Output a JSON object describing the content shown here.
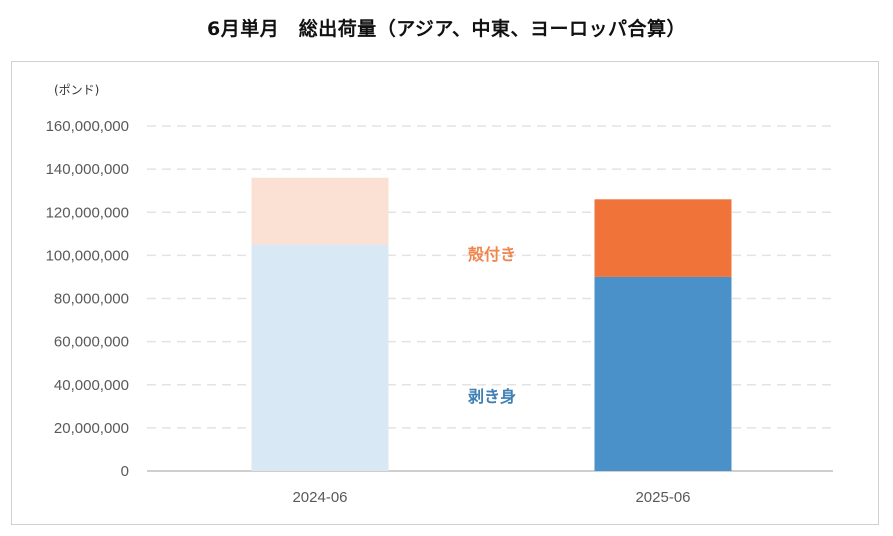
{
  "title": "6月単月　総出荷量（アジア、中東、ヨーロッパ合算）",
  "chart_data": {
    "type": "bar",
    "stacked": true,
    "title": "6月単月　総出荷量（アジア、中東、ヨーロッパ合算）",
    "y_unit": "(ポンド)",
    "categories": [
      "2024-06",
      "2025-06"
    ],
    "series": [
      {
        "name": "剥き身",
        "values": [
          105000000,
          90000000
        ],
        "colors": [
          "#d9e8f5",
          "#4a90c9"
        ],
        "label_color": "#3f7fb3"
      },
      {
        "name": "殻付き",
        "values": [
          31000000,
          36000000
        ],
        "colors": [
          "#fbe0d4",
          "#f0733a"
        ],
        "label_color": "#f0864f"
      }
    ],
    "ylim": [
      0,
      160000000
    ],
    "yticks": [
      0,
      20000000,
      40000000,
      60000000,
      80000000,
      100000000,
      120000000,
      140000000,
      160000000
    ],
    "ytick_labels": [
      "0",
      "20,000,000",
      "40,000,000",
      "60,000,000",
      "80,000,000",
      "100,000,000",
      "120,000,000",
      "140,000,000",
      "160,000,000"
    ],
    "grid": true,
    "legend": "inline-between-bars"
  }
}
